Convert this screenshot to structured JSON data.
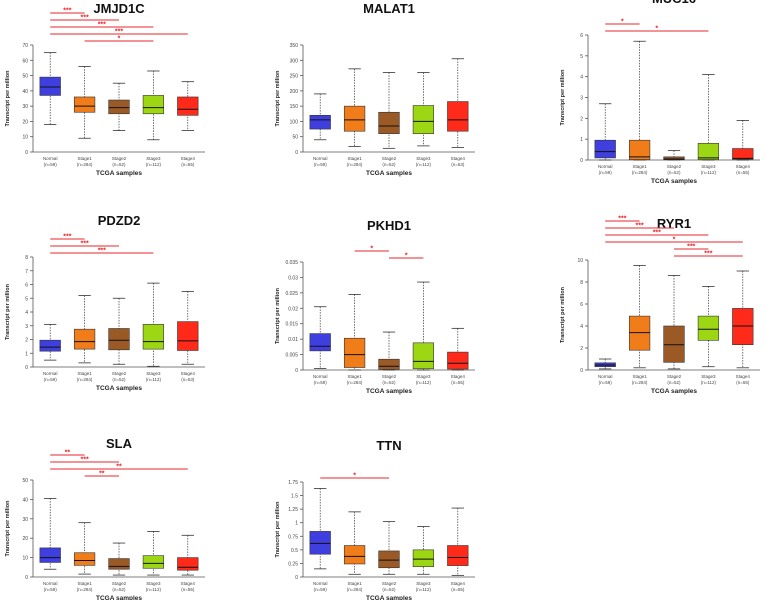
{
  "figure": {
    "stage_labels": [
      "Normal",
      "Stage1",
      "Stage2",
      "Stage3",
      "Stage4"
    ],
    "ylabel": "Transcript per million",
    "xlabel": "TCGA samples",
    "colors": [
      "#3f3fe0",
      "#f07c1a",
      "#9b5a25",
      "#9dd613",
      "#ff2a1a"
    ],
    "sig_color": "#e8272b"
  },
  "chart_data": [
    {
      "type": "box",
      "title": "JMJD1C",
      "categories": [
        "Normal",
        "Stage1",
        "Stage2",
        "Stage3",
        "Stage4"
      ],
      "n_labels": [
        "(n=59)",
        "(n=284)",
        "(n=52)",
        "(n=112)",
        "(n=55)"
      ],
      "ylim": [
        0,
        70
      ],
      "yticks": [
        0,
        10,
        20,
        30,
        40,
        50,
        60,
        70
      ],
      "ytick_labels": [
        "0",
        "10",
        "20",
        "30",
        "40",
        "50",
        "60",
        "70"
      ],
      "boxes": [
        {
          "min": 18,
          "q1": 37,
          "median": 42.5,
          "q3": 49,
          "max": 65
        },
        {
          "min": 9,
          "q1": 26,
          "median": 30,
          "q3": 36,
          "max": 56
        },
        {
          "min": 14,
          "q1": 25,
          "median": 29,
          "q3": 34,
          "max": 45
        },
        {
          "min": 8,
          "q1": 25,
          "median": 29,
          "q3": 37,
          "max": 53
        },
        {
          "min": 14,
          "q1": 24,
          "median": 28,
          "q3": 36,
          "max": 46
        }
      ],
      "significance": [
        {
          "from": 0,
          "to": 1,
          "label": "***"
        },
        {
          "from": 0,
          "to": 2,
          "label": "***"
        },
        {
          "from": 0,
          "to": 3,
          "label": "***"
        },
        {
          "from": 0,
          "to": 4,
          "label": "***"
        },
        {
          "from": 1,
          "to": 3,
          "label": "*"
        }
      ]
    },
    {
      "type": "box",
      "title": "MALAT1",
      "categories": [
        "Normal",
        "Stage1",
        "Stage2",
        "Stage3",
        "Stage4"
      ],
      "n_labels": [
        "(n=59)",
        "(n=284)",
        "(n=52)",
        "(n=112)",
        "(n=53)"
      ],
      "ylim": [
        0,
        350
      ],
      "yticks": [
        0,
        50,
        100,
        150,
        200,
        250,
        300,
        350
      ],
      "ytick_labels": [
        "0",
        "50",
        "100",
        "150",
        "200",
        "250",
        "300",
        "350"
      ],
      "boxes": [
        {
          "min": 40,
          "q1": 75,
          "median": 105,
          "q3": 120,
          "max": 190
        },
        {
          "min": 18,
          "q1": 68,
          "median": 105,
          "q3": 150,
          "max": 272
        },
        {
          "min": 12,
          "q1": 60,
          "median": 85,
          "q3": 130,
          "max": 260
        },
        {
          "min": 20,
          "q1": 60,
          "median": 100,
          "q3": 152,
          "max": 260
        },
        {
          "min": 15,
          "q1": 68,
          "median": 105,
          "q3": 165,
          "max": 305
        }
      ],
      "significance": []
    },
    {
      "type": "box",
      "title": "MUC16",
      "categories": [
        "Normal",
        "Stage1",
        "Stage2",
        "Stage3",
        "Stage4"
      ],
      "n_labels": [
        "(n=59)",
        "(n=284)",
        "(n=52)",
        "(n=112)",
        "(n=55)"
      ],
      "ylim": [
        0,
        6
      ],
      "yticks": [
        0,
        1,
        2,
        3,
        4,
        5,
        6
      ],
      "ytick_labels": [
        "0",
        "1",
        "2",
        "3",
        "4",
        "5",
        "6"
      ],
      "boxes": [
        {
          "min": 0,
          "q1": 0.1,
          "median": 0.4,
          "q3": 0.95,
          "max": 2.7
        },
        {
          "min": 0,
          "q1": 0.02,
          "median": 0.15,
          "q3": 0.95,
          "max": 5.7
        },
        {
          "min": 0,
          "q1": 0.01,
          "median": 0.05,
          "q3": 0.15,
          "max": 0.45
        },
        {
          "min": 0,
          "q1": 0.02,
          "median": 0.1,
          "q3": 0.8,
          "max": 4.1
        },
        {
          "min": 0,
          "q1": 0.03,
          "median": 0.08,
          "q3": 0.55,
          "max": 1.9
        }
      ],
      "significance": [
        {
          "from": 0,
          "to": 1,
          "label": "*"
        },
        {
          "from": 0,
          "to": 3,
          "label": "*"
        }
      ]
    },
    {
      "type": "box",
      "title": "PDZD2",
      "categories": [
        "Normal",
        "Stage1",
        "Stage2",
        "Stage3",
        "Stage4"
      ],
      "n_labels": [
        "(n=59)",
        "(n=284)",
        "(n=52)",
        "(n=112)",
        "(n=53)"
      ],
      "ylim": [
        0,
        8
      ],
      "yticks": [
        0,
        1,
        2,
        3,
        4,
        5,
        6,
        7,
        8
      ],
      "ytick_labels": [
        "0",
        "1",
        "2",
        "3",
        "4",
        "5",
        "6",
        "7",
        "8"
      ],
      "boxes": [
        {
          "min": 0.5,
          "q1": 1.15,
          "median": 1.45,
          "q3": 1.95,
          "max": 3.1
        },
        {
          "min": 0.3,
          "q1": 1.3,
          "median": 1.85,
          "q3": 2.75,
          "max": 5.2
        },
        {
          "min": 0.2,
          "q1": 1.25,
          "median": 1.95,
          "q3": 2.8,
          "max": 5.0
        },
        {
          "min": 0.05,
          "q1": 1.3,
          "median": 1.85,
          "q3": 3.1,
          "max": 6.1
        },
        {
          "min": 0.2,
          "q1": 1.2,
          "median": 1.9,
          "q3": 3.3,
          "max": 5.5
        }
      ],
      "significance": [
        {
          "from": 0,
          "to": 1,
          "label": "***"
        },
        {
          "from": 0,
          "to": 2,
          "label": "***"
        },
        {
          "from": 0,
          "to": 3,
          "label": "***"
        }
      ]
    },
    {
      "type": "box",
      "title": "PKHD1",
      "categories": [
        "Normal",
        "Stage1",
        "Stage2",
        "Stage3",
        "Stage4"
      ],
      "n_labels": [
        "(n=59)",
        "(n=284)",
        "(n=52)",
        "(n=112)",
        "(n=55)"
      ],
      "ylim": [
        0,
        0.035
      ],
      "yticks": [
        0,
        0.005,
        0.01,
        0.015,
        0.02,
        0.025,
        0.03,
        0.035
      ],
      "ytick_labels": [
        "0",
        "0.005",
        "0.01",
        "0.015",
        "0.02",
        "0.025",
        "0.03",
        "0.035"
      ],
      "boxes": [
        {
          "min": 0.0005,
          "q1": 0.0062,
          "median": 0.0077,
          "q3": 0.0118,
          "max": 0.0205
        },
        {
          "min": 0,
          "q1": 0.0008,
          "median": 0.005,
          "q3": 0.0103,
          "max": 0.0245
        },
        {
          "min": 0,
          "q1": 0.0002,
          "median": 0.0012,
          "q3": 0.0035,
          "max": 0.0123
        },
        {
          "min": 0,
          "q1": 0.0004,
          "median": 0.0028,
          "q3": 0.0088,
          "max": 0.0285
        },
        {
          "min": 0,
          "q1": 0.0003,
          "median": 0.0022,
          "q3": 0.0058,
          "max": 0.0135
        }
      ],
      "significance": [
        {
          "from": 1,
          "to": 2,
          "label": "*"
        },
        {
          "from": 2,
          "to": 3,
          "label": "*"
        }
      ]
    },
    {
      "type": "box",
      "title": "RYR1",
      "categories": [
        "Normal",
        "Stage1",
        "Stage2",
        "Stage3",
        "Stage4"
      ],
      "n_labels": [
        "(n=59)",
        "(n=284)",
        "(n=52)",
        "(n=112)",
        "(n=55)"
      ],
      "ylim": [
        0,
        10
      ],
      "yticks": [
        0,
        2,
        4,
        6,
        8,
        10
      ],
      "ytick_labels": [
        "0",
        "2",
        "4",
        "6",
        "8",
        "10"
      ],
      "boxes": [
        {
          "min": 0.1,
          "q1": 0.3,
          "median": 0.45,
          "q3": 0.65,
          "max": 1.0
        },
        {
          "min": 0.2,
          "q1": 1.8,
          "median": 3.4,
          "q3": 4.9,
          "max": 9.5
        },
        {
          "min": 0.1,
          "q1": 0.7,
          "median": 2.3,
          "q3": 4.0,
          "max": 8.6
        },
        {
          "min": 0.3,
          "q1": 2.7,
          "median": 3.7,
          "q3": 4.9,
          "max": 7.6
        },
        {
          "min": 0.2,
          "q1": 2.3,
          "median": 4.0,
          "q3": 5.6,
          "max": 9.0
        }
      ],
      "significance": [
        {
          "from": 0,
          "to": 1,
          "label": "***"
        },
        {
          "from": 0,
          "to": 2,
          "label": "***"
        },
        {
          "from": 0,
          "to": 3,
          "label": "***"
        },
        {
          "from": 0,
          "to": 4,
          "label": "*"
        },
        {
          "from": 2,
          "to": 3,
          "label": "***"
        },
        {
          "from": 2,
          "to": 4,
          "label": "***"
        }
      ]
    },
    {
      "type": "box",
      "title": "SLA",
      "categories": [
        "Normal",
        "Stage1",
        "Stage2",
        "Stage3",
        "Stage4"
      ],
      "n_labels": [
        "(n=59)",
        "(n=284)",
        "(n=52)",
        "(n=112)",
        "(n=55)"
      ],
      "ylim": [
        0,
        50
      ],
      "yticks": [
        0,
        10,
        20,
        30,
        40,
        50
      ],
      "ytick_labels": [
        "0",
        "10",
        "20",
        "30",
        "40",
        "50"
      ],
      "boxes": [
        {
          "min": 4,
          "q1": 7.5,
          "median": 10,
          "q3": 15,
          "max": 40.5
        },
        {
          "min": 1.5,
          "q1": 6,
          "median": 8.5,
          "q3": 12.5,
          "max": 28
        },
        {
          "min": 1,
          "q1": 4,
          "median": 5.5,
          "q3": 9.5,
          "max": 17.5
        },
        {
          "min": 1,
          "q1": 4.5,
          "median": 7,
          "q3": 11,
          "max": 23.5
        },
        {
          "min": 1,
          "q1": 3.5,
          "median": 5,
          "q3": 10,
          "max": 21.5
        }
      ],
      "significance": [
        {
          "from": 0,
          "to": 1,
          "label": "**"
        },
        {
          "from": 0,
          "to": 2,
          "label": "***"
        },
        {
          "from": 0,
          "to": 4,
          "label": "**"
        },
        {
          "from": 1,
          "to": 2,
          "label": "**"
        }
      ]
    },
    {
      "type": "box",
      "title": "TTN",
      "categories": [
        "Normal",
        "Stage1",
        "Stage2",
        "Stage3",
        "Stage4"
      ],
      "n_labels": [
        "(n=59)",
        "(n=284)",
        "(n=52)",
        "(n=112)",
        "(n=55)"
      ],
      "ylim": [
        0,
        1.75
      ],
      "yticks": [
        0,
        0.25,
        0.5,
        0.75,
        1,
        1.25,
        1.5,
        1.75
      ],
      "ytick_labels": [
        "0",
        "0.25",
        "0.5",
        "0.75",
        "1",
        "1.25",
        "1.5",
        "1.75"
      ],
      "boxes": [
        {
          "min": 0.15,
          "q1": 0.42,
          "median": 0.62,
          "q3": 0.84,
          "max": 1.63
        },
        {
          "min": 0.05,
          "q1": 0.24,
          "median": 0.38,
          "q3": 0.58,
          "max": 1.2
        },
        {
          "min": 0.05,
          "q1": 0.17,
          "median": 0.31,
          "q3": 0.48,
          "max": 1.02
        },
        {
          "min": 0.05,
          "q1": 0.19,
          "median": 0.33,
          "q3": 0.5,
          "max": 0.93
        },
        {
          "min": 0.03,
          "q1": 0.21,
          "median": 0.36,
          "q3": 0.58,
          "max": 1.27
        }
      ],
      "significance": [
        {
          "from": 0,
          "to": 2,
          "label": "*"
        }
      ]
    }
  ]
}
